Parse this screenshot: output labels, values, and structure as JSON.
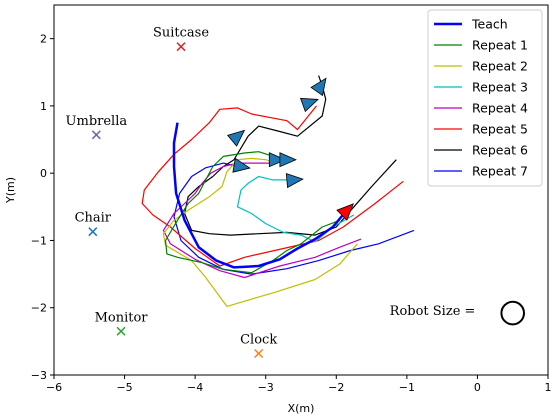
{
  "chart_data": {
    "type": "line",
    "xlabel": "X(m)",
    "ylabel": "Y(m)",
    "xlim": [
      -6,
      1
    ],
    "ylim": [
      -3,
      2.5
    ],
    "x_ticks": [
      -6,
      -5,
      -4,
      -3,
      -2,
      -1,
      0,
      1
    ],
    "y_ticks": [
      -3,
      -2,
      -1,
      0,
      1,
      2
    ],
    "x_tick_labels": [
      "−6",
      "−5",
      "−4",
      "−3",
      "−2",
      "−1",
      "0",
      "1"
    ],
    "y_tick_labels": [
      "−3",
      "−2",
      "−1",
      "0",
      "1",
      "2"
    ],
    "legend_position": "top-right",
    "series": [
      {
        "name": "Teach",
        "color": "#0000ff",
        "width": 2.5,
        "points": [
          [
            -4.25,
            0.75
          ],
          [
            -4.3,
            0.45
          ],
          [
            -4.3,
            0.1
          ],
          [
            -4.27,
            -0.3
          ],
          [
            -4.15,
            -0.7
          ],
          [
            -3.95,
            -1.1
          ],
          [
            -3.7,
            -1.3
          ],
          [
            -3.45,
            -1.4
          ],
          [
            -3.1,
            -1.38
          ],
          [
            -2.8,
            -1.28
          ],
          [
            -2.55,
            -1.12
          ],
          [
            -2.3,
            -0.98
          ],
          [
            -2.05,
            -0.8
          ],
          [
            -1.85,
            -0.55
          ]
        ]
      },
      {
        "name": "Repeat 1",
        "color": "#008000",
        "width": 1.2,
        "points": [
          [
            -1.95,
            -0.7
          ],
          [
            -2.2,
            -0.8
          ],
          [
            -2.5,
            -1.05
          ],
          [
            -2.7,
            -1.15
          ],
          [
            -2.9,
            -1.3
          ],
          [
            -3.2,
            -1.48
          ],
          [
            -3.6,
            -1.43
          ],
          [
            -3.9,
            -1.33
          ],
          [
            -4.25,
            -1.25
          ],
          [
            -4.4,
            -1.2
          ],
          [
            -4.42,
            -1.0
          ],
          [
            -4.25,
            -0.7
          ],
          [
            -4.1,
            -0.45
          ],
          [
            -3.95,
            -0.3
          ],
          [
            -3.85,
            -0.1
          ],
          [
            -3.75,
            0.1
          ],
          [
            -3.6,
            0.25
          ],
          [
            -3.3,
            0.3
          ],
          [
            -3.1,
            0.32
          ],
          [
            -2.75,
            0.2
          ]
        ]
      },
      {
        "name": "Repeat 2",
        "color": "#bfbf00",
        "width": 1.2,
        "points": [
          [
            -1.7,
            -1.05
          ],
          [
            -1.95,
            -1.35
          ],
          [
            -2.3,
            -1.58
          ],
          [
            -2.9,
            -1.78
          ],
          [
            -3.55,
            -1.98
          ],
          [
            -3.85,
            -1.55
          ],
          [
            -4.05,
            -1.3
          ],
          [
            -4.42,
            -1.07
          ],
          [
            -4.45,
            -0.9
          ],
          [
            -4.3,
            -0.7
          ],
          [
            -4.1,
            -0.55
          ],
          [
            -3.8,
            -0.35
          ],
          [
            -3.62,
            -0.2
          ],
          [
            -3.55,
            0.02
          ],
          [
            -3.4,
            0.2
          ],
          [
            -3.2,
            0.22
          ],
          [
            -3.0,
            0.2
          ],
          [
            -2.85,
            0.15
          ]
        ]
      },
      {
        "name": "Repeat 3",
        "color": "#00bfbf",
        "width": 1.2,
        "points": [
          [
            -1.75,
            -0.62
          ],
          [
            -2.05,
            -0.8
          ],
          [
            -2.3,
            -1.02
          ],
          [
            -2.5,
            -0.92
          ],
          [
            -2.75,
            -0.88
          ],
          [
            -3.0,
            -0.75
          ],
          [
            -3.2,
            -0.6
          ],
          [
            -3.4,
            -0.5
          ],
          [
            -3.35,
            -0.25
          ],
          [
            -3.25,
            -0.15
          ],
          [
            -3.1,
            -0.05
          ],
          [
            -2.9,
            -0.1
          ],
          [
            -2.65,
            -0.1
          ]
        ]
      },
      {
        "name": "Repeat 4",
        "color": "#bf00bf",
        "width": 1.2,
        "points": [
          [
            -1.65,
            -0.98
          ],
          [
            -1.95,
            -1.1
          ],
          [
            -2.3,
            -1.25
          ],
          [
            -2.8,
            -1.38
          ],
          [
            -3.3,
            -1.55
          ],
          [
            -3.65,
            -1.45
          ],
          [
            -4.0,
            -1.28
          ],
          [
            -4.35,
            -1.05
          ],
          [
            -4.45,
            -0.85
          ],
          [
            -4.3,
            -0.6
          ],
          [
            -4.15,
            -0.45
          ],
          [
            -4.0,
            -0.3
          ],
          [
            -3.9,
            -0.15
          ],
          [
            -3.78,
            0.0
          ],
          [
            -3.6,
            0.1
          ],
          [
            -3.4,
            0.15
          ],
          [
            -3.15,
            0.15
          ],
          [
            -2.95,
            0.15
          ],
          [
            -2.75,
            0.18
          ]
        ]
      },
      {
        "name": "Repeat 5",
        "color": "#ff0000",
        "width": 1.2,
        "points": [
          [
            -1.05,
            -0.12
          ],
          [
            -1.45,
            -0.45
          ],
          [
            -1.9,
            -0.8
          ],
          [
            -2.25,
            -1.0
          ],
          [
            -2.75,
            -1.12
          ],
          [
            -3.3,
            -1.25
          ],
          [
            -3.65,
            -1.38
          ],
          [
            -4.0,
            -1.12
          ],
          [
            -4.35,
            -0.8
          ],
          [
            -4.6,
            -0.62
          ],
          [
            -4.75,
            -0.45
          ],
          [
            -4.72,
            -0.25
          ],
          [
            -4.52,
            0.02
          ],
          [
            -4.3,
            0.28
          ],
          [
            -4.05,
            0.5
          ],
          [
            -3.8,
            0.75
          ],
          [
            -3.65,
            0.95
          ],
          [
            -3.4,
            0.97
          ],
          [
            -3.2,
            0.88
          ],
          [
            -2.7,
            0.78
          ],
          [
            -2.55,
            0.65
          ],
          [
            -2.28,
            1.0
          ]
        ]
      },
      {
        "name": "Repeat 6",
        "color": "#000000",
        "width": 1.2,
        "points": [
          [
            -1.15,
            0.2
          ],
          [
            -1.5,
            -0.2
          ],
          [
            -1.75,
            -0.5
          ],
          [
            -2.0,
            -0.8
          ],
          [
            -2.3,
            -0.92
          ],
          [
            -2.7,
            -0.88
          ],
          [
            -3.1,
            -0.9
          ],
          [
            -3.5,
            -0.92
          ],
          [
            -3.8,
            -0.9
          ],
          [
            -4.05,
            -0.85
          ],
          [
            -4.15,
            -0.6
          ],
          [
            -4.1,
            -0.35
          ],
          [
            -3.95,
            -0.2
          ],
          [
            -3.75,
            -0.05
          ],
          [
            -3.6,
            0.1
          ],
          [
            -3.45,
            0.2
          ],
          [
            -3.25,
            0.55
          ],
          [
            -3.1,
            0.7
          ],
          [
            -2.8,
            0.62
          ],
          [
            -2.55,
            0.55
          ],
          [
            -2.2,
            0.85
          ],
          [
            -2.15,
            1.1
          ],
          [
            -2.2,
            1.3
          ],
          [
            -2.25,
            1.45
          ]
        ]
      },
      {
        "name": "Repeat 7",
        "color": "#0000ff",
        "width": 1.2,
        "points": [
          [
            -0.9,
            -0.85
          ],
          [
            -1.4,
            -1.05
          ],
          [
            -1.8,
            -1.15
          ],
          [
            -2.25,
            -1.3
          ],
          [
            -2.7,
            -1.42
          ],
          [
            -3.2,
            -1.5
          ],
          [
            -3.6,
            -1.43
          ],
          [
            -3.95,
            -1.25
          ],
          [
            -4.2,
            -1.0
          ],
          [
            -4.3,
            -0.65
          ],
          [
            -4.22,
            -0.3
          ],
          [
            -4.05,
            -0.05
          ],
          [
            -3.85,
            0.08
          ],
          [
            -3.6,
            0.15
          ],
          [
            -3.4,
            0.1
          ]
        ]
      }
    ],
    "arrows": [
      {
        "x": -2.22,
        "y": 1.3,
        "angle": 55,
        "color": "#1f77b4"
      },
      {
        "x": -2.38,
        "y": 1.05,
        "angle": 20,
        "color": "#1f77b4"
      },
      {
        "x": -3.4,
        "y": 0.55,
        "angle": 40,
        "color": "#1f77b4"
      },
      {
        "x": -2.85,
        "y": 0.2,
        "angle": 0,
        "color": "#1f77b4"
      },
      {
        "x": -2.7,
        "y": 0.2,
        "angle": 0,
        "color": "#1f77b4"
      },
      {
        "x": -3.35,
        "y": 0.1,
        "angle": -10,
        "color": "#1f77b4"
      },
      {
        "x": -2.6,
        "y": -0.1,
        "angle": 5,
        "color": "#1f77b4"
      },
      {
        "x": -1.85,
        "y": -0.55,
        "angle": 45,
        "color": "#ff0000"
      }
    ],
    "objects": [
      {
        "label": "Suitcase",
        "x": -4.2,
        "y": 1.88,
        "color": "#d62728"
      },
      {
        "label": "Umbrella",
        "x": -5.4,
        "y": 0.57,
        "color": "#6a6a9f"
      },
      {
        "label": "Chair",
        "x": -5.45,
        "y": -0.87,
        "color": "#1f77b4"
      },
      {
        "label": "Monitor",
        "x": -5.05,
        "y": -2.35,
        "color": "#2ca02c"
      },
      {
        "label": "Clock",
        "x": -3.1,
        "y": -2.68,
        "color": "#ff7f0e"
      }
    ],
    "robot_size": {
      "label": "Robot Size =",
      "x": 0.5,
      "y": -2.05,
      "diameter_m": 0.32
    }
  }
}
